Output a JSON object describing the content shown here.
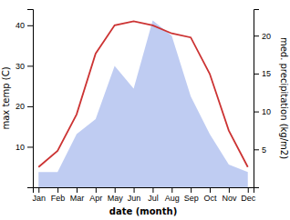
{
  "chart_data": {
    "type": "line",
    "xlabel": "date (month)",
    "ylabel": "max temp (C)",
    "y2label": "med. precipitation (kg/m2)",
    "categories": [
      "Jan",
      "Feb",
      "Mar",
      "Apr",
      "May",
      "Jun",
      "Jul",
      "Aug",
      "Sep",
      "Oct",
      "Nov",
      "Dec"
    ],
    "series": [
      {
        "type": "area",
        "axis": "y2",
        "color": "#aabbee",
        "values": [
          2,
          2,
          7,
          9,
          16,
          13,
          22,
          20,
          12,
          7,
          3,
          2
        ]
      },
      {
        "type": "line",
        "color": "#cc3333",
        "values": [
          5,
          9,
          18,
          33,
          40,
          41,
          40,
          38,
          37,
          28,
          14,
          5
        ]
      }
    ],
    "ylim": [
      0,
      44
    ],
    "yticks": [
      10,
      20,
      30,
      40
    ],
    "y2lim": [
      0,
      23.5
    ],
    "y2ticks": [
      5,
      10,
      15,
      20
    ],
    "grid": false
  }
}
